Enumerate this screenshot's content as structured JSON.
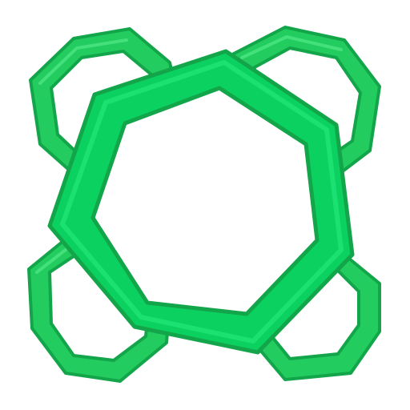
{
  "graphic": {
    "icon": "interlocked-green-polygon-rings",
    "colors": {
      "outline": "#13a54a",
      "ring_fill": "#22cc5e",
      "ring_highlight": "#43e07c",
      "main_fill": "#0bd160",
      "main_highlight": "#1ee476",
      "background": "#ffffff"
    }
  }
}
